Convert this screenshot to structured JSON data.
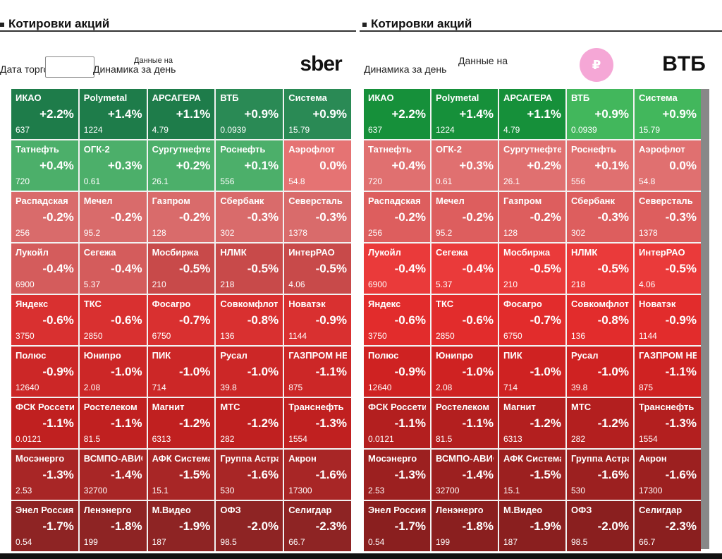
{
  "left": {
    "title": "Котировки акций",
    "subtitle": "Динамика за день",
    "date_label": "Дата торгов",
    "date_value": "",
    "updated_label": "Данные на",
    "updated_value": "",
    "logo_text": "sber",
    "tiles": [
      {
        "name": "ИКАО",
        "change": "+2.2%",
        "price": "637",
        "color": "#1e7c4a"
      },
      {
        "name": "Polymetal",
        "change": "+1.4%",
        "price": "1224",
        "color": "#1e7c4a"
      },
      {
        "name": "АРСАГЕРА",
        "change": "+1.1%",
        "price": "4.79",
        "color": "#1e7c4a"
      },
      {
        "name": "ВТБ",
        "change": "+0.9%",
        "price": "0.0939",
        "color": "#2a8a55"
      },
      {
        "name": "Система",
        "change": "+0.9%",
        "price": "15.79",
        "color": "#2a8a55"
      },
      {
        "name": "Татнефть",
        "change": "+0.4%",
        "price": "720",
        "color": "#4caf6a"
      },
      {
        "name": "ОГК-2",
        "change": "+0.3%",
        "price": "0.61",
        "color": "#4caf6a"
      },
      {
        "name": "Сургутнефтегаз",
        "change": "+0.2%",
        "price": "26.1",
        "color": "#4caf6a"
      },
      {
        "name": "Роснефть",
        "change": "+0.1%",
        "price": "556",
        "color": "#4caf6a"
      },
      {
        "name": "Аэрофлот",
        "change": "0.0%",
        "price": "54.8",
        "color": "#e57373"
      },
      {
        "name": "Распадская",
        "change": "-0.2%",
        "price": "256",
        "color": "#d96b6b"
      },
      {
        "name": "Мечел",
        "change": "-0.2%",
        "price": "95.2",
        "color": "#d96b6b"
      },
      {
        "name": "Газпром",
        "change": "-0.2%",
        "price": "128",
        "color": "#d96b6b"
      },
      {
        "name": "Сбербанк",
        "change": "-0.3%",
        "price": "302",
        "color": "#d96b6b"
      },
      {
        "name": "Северсталь",
        "change": "-0.3%",
        "price": "1378",
        "color": "#d96b6b"
      },
      {
        "name": "Лукойл",
        "change": "-0.4%",
        "price": "6900",
        "color": "#d45c5c"
      },
      {
        "name": "Сегежа",
        "change": "-0.4%",
        "price": "5.37",
        "color": "#d45c5c"
      },
      {
        "name": "Мосбиржа",
        "change": "-0.5%",
        "price": "210",
        "color": "#c84a4a"
      },
      {
        "name": "НЛМК",
        "change": "-0.5%",
        "price": "218",
        "color": "#c84a4a"
      },
      {
        "name": "ИнтерРАО",
        "change": "-0.5%",
        "price": "4.06",
        "color": "#c84a4a"
      },
      {
        "name": "Яндекс",
        "change": "-0.6%",
        "price": "3750",
        "color": "#d93030"
      },
      {
        "name": "ТКС",
        "change": "-0.6%",
        "price": "2850",
        "color": "#d93030"
      },
      {
        "name": "Фосагро",
        "change": "-0.7%",
        "price": "6750",
        "color": "#d93030"
      },
      {
        "name": "Совкомфлот",
        "change": "-0.8%",
        "price": "136",
        "color": "#d93030"
      },
      {
        "name": "Новатэк",
        "change": "-0.9%",
        "price": "1144",
        "color": "#d93030"
      },
      {
        "name": "Полюс",
        "change": "-0.9%",
        "price": "12640",
        "color": "#cc2727"
      },
      {
        "name": "Юнипро",
        "change": "-1.0%",
        "price": "2.08",
        "color": "#cc2727"
      },
      {
        "name": "ПИК",
        "change": "-1.0%",
        "price": "714",
        "color": "#cc2727"
      },
      {
        "name": "Русал",
        "change": "-1.0%",
        "price": "39.8",
        "color": "#cc2727"
      },
      {
        "name": "ГАЗПРОМ НЕФТЬ",
        "change": "-1.1%",
        "price": "875",
        "color": "#cc2727"
      },
      {
        "name": "ФСК Россети",
        "change": "-1.1%",
        "price": "0.0121",
        "color": "#c02020"
      },
      {
        "name": "Ростелеком",
        "change": "-1.1%",
        "price": "81.5",
        "color": "#c02020"
      },
      {
        "name": "Магнит",
        "change": "-1.2%",
        "price": "6313",
        "color": "#c02020"
      },
      {
        "name": "МТС",
        "change": "-1.2%",
        "price": "282",
        "color": "#c02020"
      },
      {
        "name": "Транснефть",
        "change": "-1.3%",
        "price": "1554",
        "color": "#c02020"
      },
      {
        "name": "Мосэнерго",
        "change": "-1.3%",
        "price": "2.53",
        "color": "#a82626"
      },
      {
        "name": "ВСМПО-АВИСМА",
        "change": "-1.4%",
        "price": "32700",
        "color": "#a82626"
      },
      {
        "name": "АФК Система",
        "change": "-1.5%",
        "price": "15.1",
        "color": "#a82626"
      },
      {
        "name": "Группа Астра",
        "change": "-1.6%",
        "price": "530",
        "color": "#a82626"
      },
      {
        "name": "Акрон",
        "change": "-1.6%",
        "price": "17300",
        "color": "#a82626"
      },
      {
        "name": "Энел Россия",
        "change": "-1.7%",
        "price": "0.54",
        "color": "#8e2424"
      },
      {
        "name": "Ленэнерго",
        "change": "-1.8%",
        "price": "199",
        "color": "#8e2424"
      },
      {
        "name": "М.Видео",
        "change": "-1.9%",
        "price": "187",
        "color": "#8e2424"
      },
      {
        "name": "ОФЗ",
        "change": "-2.0%",
        "price": "98.5",
        "color": "#8e2424"
      },
      {
        "name": "Селигдар",
        "change": "-2.3%",
        "price": "66.7",
        "color": "#8e2424"
      }
    ]
  },
  "right": {
    "title": "Котировки акций",
    "subtitle": "Динамика за день",
    "updated_label": "Данные на",
    "updated_value": "",
    "logo_pink_text": "₽",
    "logo_text": "BTБ",
    "tiles": [
      {
        "name": "ИКАО",
        "change": "+2.2%",
        "price": "637",
        "color": "#16903a"
      },
      {
        "name": "Polymetal",
        "change": "+1.4%",
        "price": "1224",
        "color": "#16903a"
      },
      {
        "name": "АРСАГЕРА",
        "change": "+1.1%",
        "price": "4.79",
        "color": "#16903a"
      },
      {
        "name": "ВТБ",
        "change": "+0.9%",
        "price": "0.0939",
        "color": "#42b75c"
      },
      {
        "name": "Система",
        "change": "+0.9%",
        "price": "15.79",
        "color": "#42b75c"
      },
      {
        "name": "Татнефть",
        "change": "+0.4%",
        "price": "720",
        "color": "#e07070"
      },
      {
        "name": "ОГК-2",
        "change": "+0.3%",
        "price": "0.61",
        "color": "#e07070"
      },
      {
        "name": "Сургутнефтегаз",
        "change": "+0.2%",
        "price": "26.1",
        "color": "#e07070"
      },
      {
        "name": "Роснефть",
        "change": "+0.1%",
        "price": "556",
        "color": "#e07070"
      },
      {
        "name": "Аэрофлот",
        "change": "0.0%",
        "price": "54.8",
        "color": "#e07070"
      },
      {
        "name": "Распадская",
        "change": "-0.2%",
        "price": "256",
        "color": "#dd5e5e"
      },
      {
        "name": "Мечел",
        "change": "-0.2%",
        "price": "95.2",
        "color": "#dd5e5e"
      },
      {
        "name": "Газпром",
        "change": "-0.2%",
        "price": "128",
        "color": "#dd5e5e"
      },
      {
        "name": "Сбербанк",
        "change": "-0.3%",
        "price": "302",
        "color": "#dd5e5e"
      },
      {
        "name": "Северсталь",
        "change": "-0.3%",
        "price": "1378",
        "color": "#dd5e5e"
      },
      {
        "name": "Лукойл",
        "change": "-0.4%",
        "price": "6900",
        "color": "#ea3a3a"
      },
      {
        "name": "Сегежа",
        "change": "-0.4%",
        "price": "5.37",
        "color": "#ea3a3a"
      },
      {
        "name": "Мосбиржа",
        "change": "-0.5%",
        "price": "210",
        "color": "#ea3a3a"
      },
      {
        "name": "НЛМК",
        "change": "-0.5%",
        "price": "218",
        "color": "#ea3a3a"
      },
      {
        "name": "ИнтерРАО",
        "change": "-0.5%",
        "price": "4.06",
        "color": "#ea3a3a"
      },
      {
        "name": "Яндекс",
        "change": "-0.6%",
        "price": "3750",
        "color": "#e22c2c"
      },
      {
        "name": "ТКС",
        "change": "-0.6%",
        "price": "2850",
        "color": "#e22c2c"
      },
      {
        "name": "Фосагро",
        "change": "-0.7%",
        "price": "6750",
        "color": "#e22c2c"
      },
      {
        "name": "Совкомфлот",
        "change": "-0.8%",
        "price": "136",
        "color": "#e22c2c"
      },
      {
        "name": "Новатэк",
        "change": "-0.9%",
        "price": "1144",
        "color": "#e22c2c"
      },
      {
        "name": "Полюс",
        "change": "-0.9%",
        "price": "12640",
        "color": "#cf2222"
      },
      {
        "name": "Юнипро",
        "change": "-1.0%",
        "price": "2.08",
        "color": "#cf2222"
      },
      {
        "name": "ПИК",
        "change": "-1.0%",
        "price": "714",
        "color": "#cf2222"
      },
      {
        "name": "Русал",
        "change": "-1.0%",
        "price": "39.8",
        "color": "#cf2222"
      },
      {
        "name": "ГАЗПРОМ НЕФТЬ",
        "change": "-1.1%",
        "price": "875",
        "color": "#cf2222"
      },
      {
        "name": "ФСК Россети",
        "change": "-1.1%",
        "price": "0.0121",
        "color": "#b31f1f"
      },
      {
        "name": "Ростелеком",
        "change": "-1.1%",
        "price": "81.5",
        "color": "#b31f1f"
      },
      {
        "name": "Магнит",
        "change": "-1.2%",
        "price": "6313",
        "color": "#b31f1f"
      },
      {
        "name": "МТС",
        "change": "-1.2%",
        "price": "282",
        "color": "#b31f1f"
      },
      {
        "name": "Транснефть",
        "change": "-1.3%",
        "price": "1554",
        "color": "#b31f1f"
      },
      {
        "name": "Мосэнерго",
        "change": "-1.3%",
        "price": "2.53",
        "color": "#9c2020"
      },
      {
        "name": "ВСМПО-АВИСМА",
        "change": "-1.4%",
        "price": "32700",
        "color": "#9c2020"
      },
      {
        "name": "АФК Система",
        "change": "-1.5%",
        "price": "15.1",
        "color": "#9c2020"
      },
      {
        "name": "Группа Астра",
        "change": "-1.6%",
        "price": "530",
        "color": "#9c2020"
      },
      {
        "name": "Акрон",
        "change": "-1.6%",
        "price": "17300",
        "color": "#9c2020"
      },
      {
        "name": "Энел Россия",
        "change": "-1.7%",
        "price": "0.54",
        "color": "#8a1f1f"
      },
      {
        "name": "Ленэнерго",
        "change": "-1.8%",
        "price": "199",
        "color": "#8a1f1f"
      },
      {
        "name": "М.Видео",
        "change": "-1.9%",
        "price": "187",
        "color": "#8a1f1f"
      },
      {
        "name": "ОФЗ",
        "change": "-2.0%",
        "price": "98.5",
        "color": "#8a1f1f"
      },
      {
        "name": "Селигдар",
        "change": "-2.3%",
        "price": "66.7",
        "color": "#8a1f1f"
      }
    ]
  }
}
